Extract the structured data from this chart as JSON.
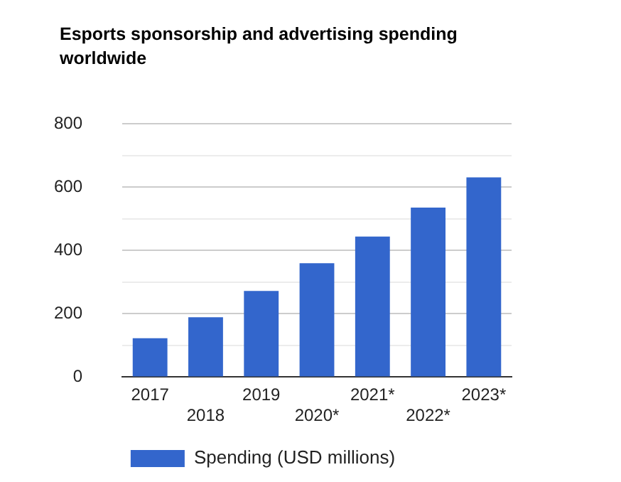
{
  "chart_data": {
    "type": "bar",
    "title": "Esports sponsorship and advertising spending worldwide",
    "categories": [
      "2017",
      "2018",
      "2019",
      "2020*",
      "2021*",
      "2022*",
      "2023*"
    ],
    "series": [
      {
        "name": "Spending (USD millions)",
        "color": "#3366cc",
        "values": [
          123,
          189,
          272,
          360,
          444,
          536,
          631
        ]
      }
    ],
    "ylim": [
      0,
      800
    ],
    "yticks": [
      0,
      {
        "value": 100,
        "label": null
      },
      200,
      {
        "value": 300,
        "label": null
      },
      400,
      {
        "value": 500,
        "label": null
      },
      600,
      {
        "value": 700,
        "label": null
      },
      800
    ],
    "grid": "y",
    "legend": "bottom"
  }
}
